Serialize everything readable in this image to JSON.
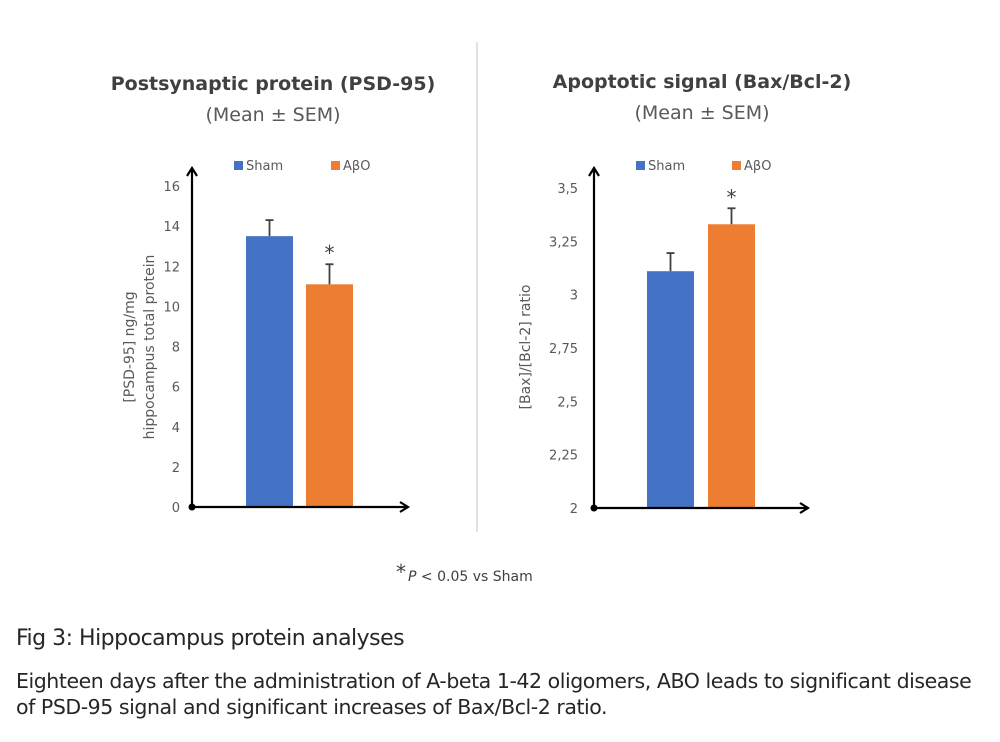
{
  "footnote": {
    "star": "*",
    "text": "P < 0.05 vs Sham",
    "p": "P",
    "rest": " < 0.05 vs Sham"
  },
  "caption": {
    "title": "Fig 3: Hippocampus protein analyses",
    "body": "Eighteen days after the administration of A-beta 1-42 oligomers, ABO leads to significant disease of PSD-95 signal and significant increases of Bax/Bcl-2 ratio."
  },
  "colors": {
    "sham": "#4472C4",
    "abo": "#ED7D31",
    "axis": "#000000",
    "divider": "#d9d9d9",
    "error": "#404040"
  },
  "chart_data": [
    {
      "type": "bar",
      "title": "Postsynaptic protein (PSD-95)",
      "subtitle": "(Mean ± SEM)",
      "xlabel": "",
      "ylabel": [
        "[PSD-95] ng/mg",
        "hippocampus total protein"
      ],
      "ylim": [
        0,
        16
      ],
      "yticks": [
        0,
        2,
        4,
        6,
        8,
        10,
        12,
        14,
        16
      ],
      "ytick_labels": [
        "0",
        "2",
        "4",
        "6",
        "8",
        "10",
        "12",
        "14",
        "16"
      ],
      "legend": {
        "position": "top",
        "entries": [
          "Sham",
          "AβO"
        ]
      },
      "grid": false,
      "series": [
        {
          "name": "Sham",
          "value": 13.5,
          "sem": 0.8,
          "significant": false
        },
        {
          "name": "AβO",
          "value": 11.1,
          "sem": 1.0,
          "significant": true
        }
      ]
    },
    {
      "type": "bar",
      "title": "Apoptotic signal (Bax/Bcl-2)",
      "subtitle": "(Mean ± SEM)",
      "xlabel": "",
      "ylabel": [
        "[Bax]/[Bcl-2] ratio"
      ],
      "ylim": [
        2,
        3.5
      ],
      "yticks": [
        2,
        2.25,
        2.5,
        2.75,
        3,
        3.25,
        3.5
      ],
      "ytick_labels": [
        "2",
        "2,25",
        "2,5",
        "2,75",
        "3",
        "3,25",
        "3,5"
      ],
      "legend": {
        "position": "top",
        "entries": [
          "Sham",
          "AβO"
        ]
      },
      "grid": false,
      "series": [
        {
          "name": "Sham",
          "value": 3.11,
          "sem": 0.085,
          "significant": false
        },
        {
          "name": "AβO",
          "value": 3.33,
          "sem": 0.075,
          "significant": true
        }
      ]
    }
  ]
}
